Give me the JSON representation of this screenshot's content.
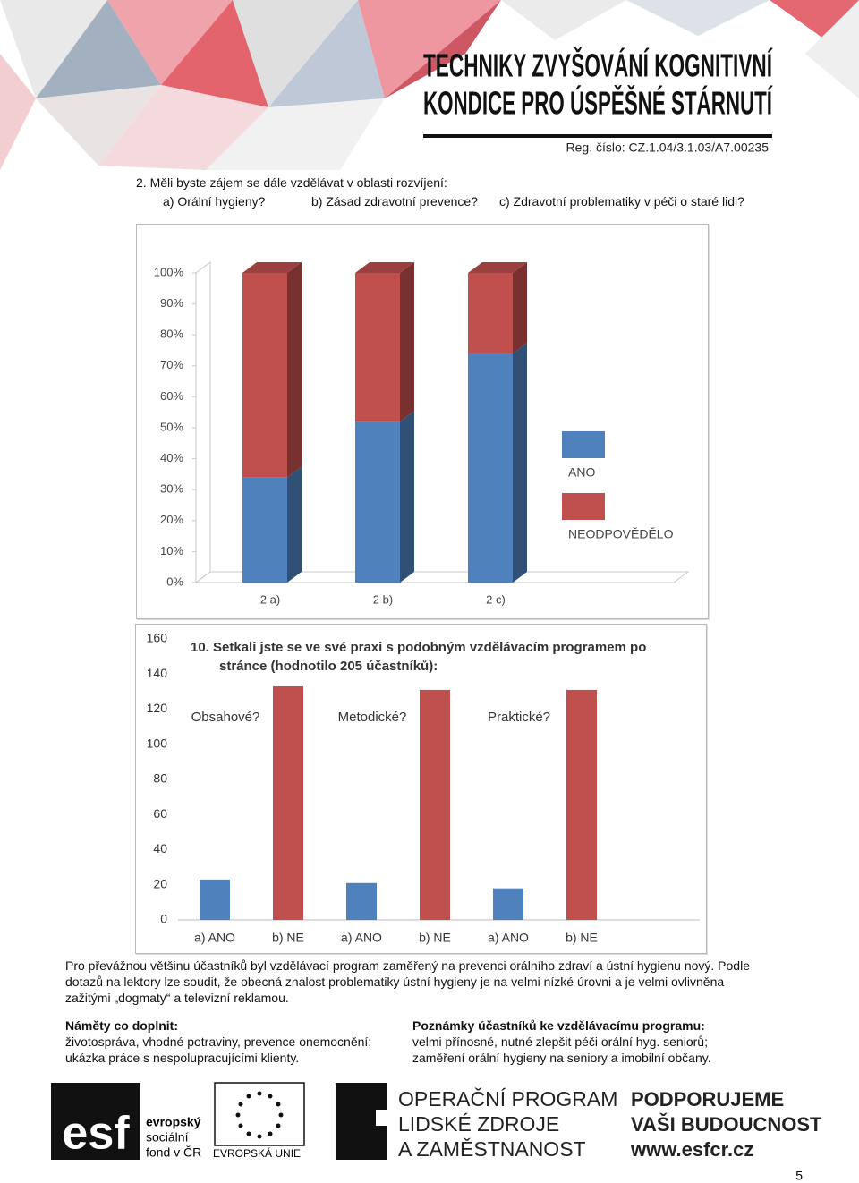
{
  "header": {
    "title_lines": [
      "TECHNIKY ZVYŠOVÁNÍ KOGNITIVNÍ",
      "KONDICE PRO ÚSPĚŠNÉ STÁRNUTÍ"
    ],
    "registration": "Reg. číslo: CZ.1.04/3.1.03/A7.00235"
  },
  "question": {
    "text": "2. Měli byste zájem se dále vzdělávat v oblasti rozvíjení:",
    "options": [
      "a) Orální hygieny?",
      "b) Zásad zdravotní prevence?",
      "c) Zdravotní problematiky v péči o staré lidi?"
    ]
  },
  "chart_data": [
    {
      "type": "stacked_bar",
      "categories": [
        "2 a)",
        "2 b)",
        "2 c)"
      ],
      "series": [
        {
          "name": "ANO",
          "color": "#4f81bd",
          "values": [
            34,
            52,
            74
          ]
        },
        {
          "name": "NEODPOVĚDĚLO",
          "color": "#c0504d",
          "values": [
            66,
            48,
            26
          ]
        }
      ],
      "ylim": [
        0,
        100
      ],
      "yticks": [
        {
          "value": 0,
          "label": "0%"
        },
        {
          "value": 10,
          "label": "10%"
        },
        {
          "value": 20,
          "label": "20%"
        },
        {
          "value": 30,
          "label": "30%"
        },
        {
          "value": 40,
          "label": "40%"
        },
        {
          "value": 50,
          "label": "50%"
        },
        {
          "value": 60,
          "label": "60%"
        },
        {
          "value": 70,
          "label": "70%"
        },
        {
          "value": 80,
          "label": "80%"
        },
        {
          "value": 90,
          "label": "90%"
        },
        {
          "value": 100,
          "label": "100%"
        }
      ],
      "grid": false,
      "legend": "right"
    },
    {
      "type": "bar",
      "title": "10. Setkali jste se ve své praxi s podobným vzdělávacím programem po stránce (hodnotilo 205 účastníků):",
      "categories": [
        "a) ANO",
        "b) NE",
        "a) ANO",
        "b) NE",
        "a) ANO",
        "b) NE"
      ],
      "values": [
        23,
        133,
        21,
        131,
        18,
        131
      ],
      "colors": [
        "#4f81bd",
        "#c0504d",
        "#4f81bd",
        "#c0504d",
        "#4f81bd",
        "#c0504d"
      ],
      "annotations": [
        "Obsahové?",
        "Metodické?",
        "Praktické?"
      ],
      "ylim": [
        0,
        160
      ],
      "yticks": [
        0,
        20,
        40,
        60,
        80,
        100,
        120,
        140,
        160
      ],
      "grid": false
    }
  ],
  "paragraph": "Pro převážnou většinu účastníků byl vzdělávací program zaměřený na prevenci orálního zdraví a ústní hygienu nový. Podle dotazů na lektory lze soudit, že obecná znalost problematiky ústní hygieny je na velmi nízké úrovni a je velmi ovlivněna zažitými „dogmaty“ a televizní reklamou.",
  "notes": [
    {
      "heading": "Náměty co doplnit:",
      "lines": [
        "životospráva, vhodné potraviny, prevence onemocnění;",
        "ukázka práce s nespolupracujícími klienty."
      ]
    },
    {
      "heading": "Poznámky účastníků ke vzdělávacímu programu:",
      "lines": [
        "velmi přínosné, nutné zlepšit péči orální hyg. seniorů;",
        "zaměření orální hygieny na seniory a imobilní občany."
      ]
    }
  ],
  "footer": {
    "esf_mark": "esf",
    "esf_lines": [
      "evropský",
      "sociální",
      "fond v ČR"
    ],
    "eu": "EVROPSKÁ UNIE",
    "program": [
      "OPERAČNÍ PROGRAM",
      "LIDSKÉ ZDROJE",
      "A ZAMĚSTNANOST"
    ],
    "support": [
      "PODPORUJEME",
      "VAŠI BUDOUCNOST",
      "www.esfcr.cz"
    ]
  },
  "page_number": 5
}
